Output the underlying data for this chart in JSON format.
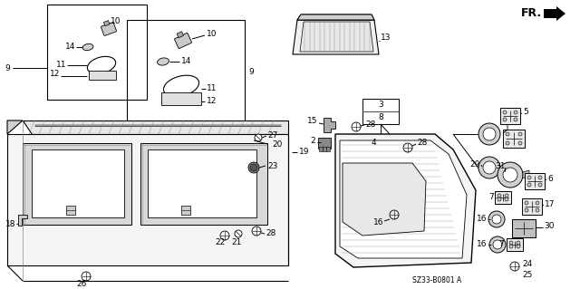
{
  "background_color": "#ffffff",
  "diagram_code": "SZ33-B0801 A",
  "fig_w": 6.4,
  "fig_h": 3.19,
  "dpi": 100
}
